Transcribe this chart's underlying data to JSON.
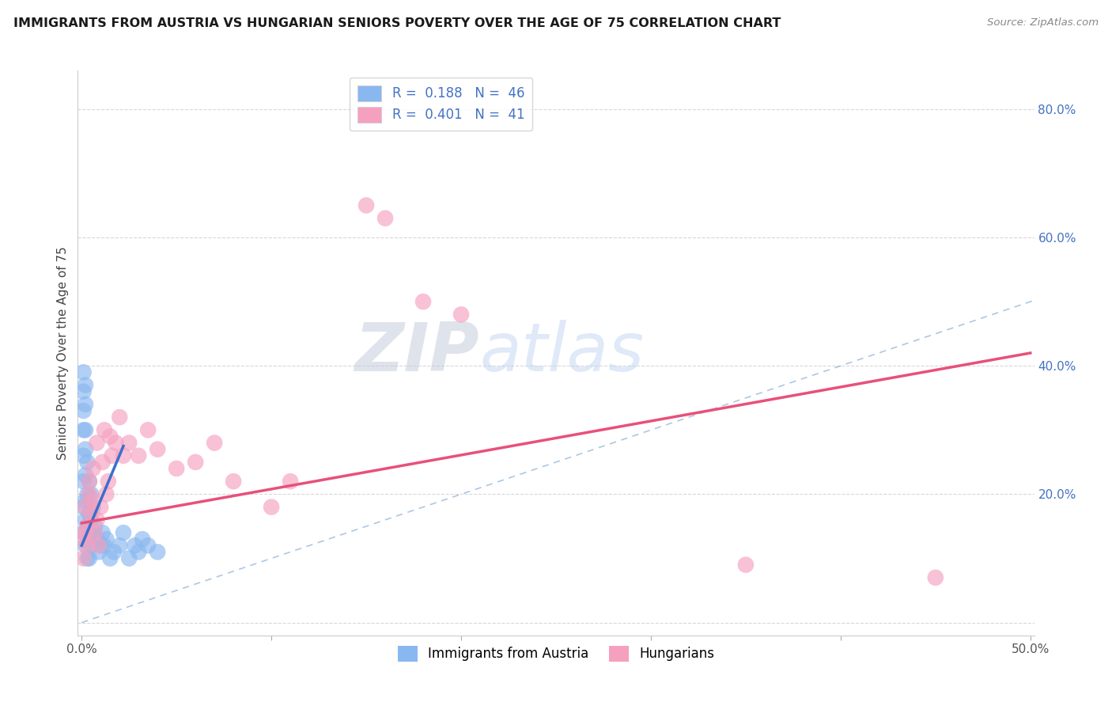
{
  "title": "IMMIGRANTS FROM AUSTRIA VS HUNGARIAN SENIORS POVERTY OVER THE AGE OF 75 CORRELATION CHART",
  "source": "Source: ZipAtlas.com",
  "xlabel": "",
  "ylabel": "Seniors Poverty Over the Age of 75",
  "xlim": [
    -0.002,
    0.502
  ],
  "ylim": [
    -0.02,
    0.86
  ],
  "xticks": [
    0.0,
    0.1,
    0.2,
    0.3,
    0.4,
    0.5
  ],
  "xticklabels": [
    "0.0%",
    "",
    "",
    "",
    "",
    "50.0%"
  ],
  "yticks": [
    0.0,
    0.2,
    0.4,
    0.6,
    0.8
  ],
  "yticklabels_right": [
    "",
    "20.0%",
    "40.0%",
    "60.0%",
    "80.0%"
  ],
  "legend1_label": "R =  0.188   N =  46",
  "legend2_label": "R =  0.401   N =  41",
  "legend_series1": "Immigrants from Austria",
  "legend_series2": "Hungarians",
  "color_austria": "#89b8f0",
  "color_hungarian": "#f5a0bf",
  "color_trendline_austria": "#3a6fcc",
  "color_trendline_hungarian": "#e8507a",
  "color_diagonal": "#8ab0d8",
  "watermark_zip": "ZIP",
  "watermark_atlas": "atlas",
  "austria_x": [
    0.001,
    0.001,
    0.001,
    0.001,
    0.001,
    0.001,
    0.001,
    0.001,
    0.002,
    0.002,
    0.002,
    0.002,
    0.002,
    0.002,
    0.002,
    0.002,
    0.003,
    0.003,
    0.003,
    0.003,
    0.004,
    0.004,
    0.004,
    0.004,
    0.005,
    0.005,
    0.005,
    0.006,
    0.006,
    0.007,
    0.008,
    0.009,
    0.01,
    0.011,
    0.012,
    0.013,
    0.015,
    0.017,
    0.02,
    0.022,
    0.025,
    0.028,
    0.03,
    0.032,
    0.035,
    0.04
  ],
  "austria_y": [
    0.14,
    0.18,
    0.22,
    0.26,
    0.3,
    0.33,
    0.36,
    0.39,
    0.12,
    0.16,
    0.19,
    0.23,
    0.27,
    0.3,
    0.34,
    0.37,
    0.1,
    0.15,
    0.2,
    0.25,
    0.1,
    0.13,
    0.17,
    0.22,
    0.12,
    0.16,
    0.2,
    0.14,
    0.18,
    0.15,
    0.13,
    0.11,
    0.12,
    0.14,
    0.12,
    0.13,
    0.1,
    0.11,
    0.12,
    0.14,
    0.1,
    0.12,
    0.11,
    0.13,
    0.12,
    0.11
  ],
  "hungarian_x": [
    0.001,
    0.001,
    0.002,
    0.002,
    0.003,
    0.003,
    0.004,
    0.004,
    0.005,
    0.006,
    0.006,
    0.007,
    0.008,
    0.008,
    0.009,
    0.01,
    0.011,
    0.012,
    0.013,
    0.014,
    0.015,
    0.016,
    0.018,
    0.02,
    0.022,
    0.025,
    0.03,
    0.035,
    0.04,
    0.05,
    0.06,
    0.07,
    0.08,
    0.1,
    0.11,
    0.15,
    0.16,
    0.18,
    0.2,
    0.35,
    0.45
  ],
  "hungarian_y": [
    0.13,
    0.1,
    0.14,
    0.18,
    0.15,
    0.12,
    0.2,
    0.22,
    0.17,
    0.19,
    0.24,
    0.14,
    0.28,
    0.16,
    0.12,
    0.18,
    0.25,
    0.3,
    0.2,
    0.22,
    0.29,
    0.26,
    0.28,
    0.32,
    0.26,
    0.28,
    0.26,
    0.3,
    0.27,
    0.24,
    0.25,
    0.28,
    0.22,
    0.18,
    0.22,
    0.65,
    0.63,
    0.5,
    0.48,
    0.09,
    0.07
  ],
  "austria_trendline_x0": 0.0,
  "austria_trendline_x1": 0.022,
  "hungarian_trendline_x0": 0.0,
  "hungarian_trendline_x1": 0.5,
  "hungarian_trendline_y0": 0.155,
  "hungarian_trendline_y1": 0.42,
  "austria_trendline_y0": 0.12,
  "austria_trendline_y1": 0.275
}
